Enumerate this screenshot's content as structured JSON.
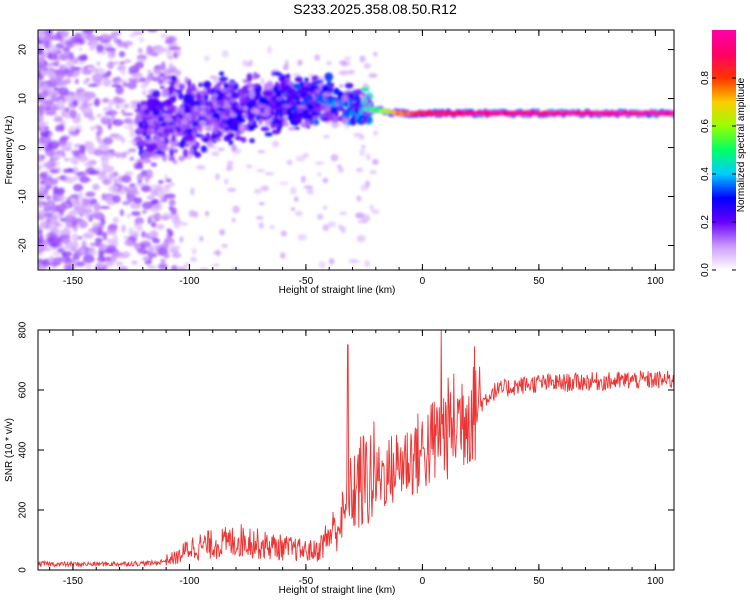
{
  "title": "S233.2025.358.08.50.R12",
  "chart_data": [
    {
      "type": "heatmap",
      "xlabel": "Height of straight line (km)",
      "ylabel": "Frequency (Hz)",
      "xlim": [
        -165,
        108
      ],
      "ylim": [
        -25,
        24
      ],
      "xticks": [
        -150,
        -100,
        -50,
        0,
        50,
        100
      ],
      "yticks": [
        -20,
        -10,
        0,
        10,
        20
      ],
      "colorbar": {
        "label": "Normalized spectral amplitude",
        "range": [
          0.0,
          1.0
        ],
        "ticks": [
          "0.0",
          "0.2",
          "0.4",
          "0.6",
          "0.8"
        ],
        "colors": [
          "#ffffff",
          "#cc99ff",
          "#6600ff",
          "#0000ff",
          "#00ccff",
          "#00ff66",
          "#99ff00",
          "#ffcc00",
          "#ff3300",
          "#ff0066",
          "#ff00aa"
        ]
      },
      "signal_track": [
        {
          "x": -120,
          "freq": 4,
          "amp": 0.18
        },
        {
          "x": -100,
          "freq": 6,
          "amp": 0.2
        },
        {
          "x": -80,
          "freq": 8,
          "amp": 0.22
        },
        {
          "x": -60,
          "freq": 9,
          "amp": 0.25
        },
        {
          "x": -40,
          "freq": 9.5,
          "amp": 0.3
        },
        {
          "x": -25,
          "freq": 8,
          "amp": 0.4
        },
        {
          "x": -10,
          "freq": 7,
          "amp": 0.75
        },
        {
          "x": 0,
          "freq": 7,
          "amp": 0.85
        },
        {
          "x": 25,
          "freq": 7,
          "amp": 0.95
        },
        {
          "x": 50,
          "freq": 7,
          "amp": 0.97
        },
        {
          "x": 75,
          "freq": 7,
          "amp": 0.97
        },
        {
          "x": 105,
          "freq": 7,
          "amp": 0.97
        }
      ]
    },
    {
      "type": "line",
      "xlabel": "Height of straight line (km)",
      "ylabel": "SNR (10 * v/v)",
      "xlim": [
        -165,
        108
      ],
      "ylim": [
        0,
        800
      ],
      "xticks": [
        -150,
        -100,
        -50,
        0,
        50,
        100
      ],
      "yticks": [
        0,
        200,
        400,
        600,
        800
      ],
      "line_color": "#ee3333",
      "series": [
        {
          "x": [
            -165,
            -150,
            -130,
            -115,
            -105,
            -100,
            -90,
            -80,
            -75,
            -70,
            -60,
            -50,
            -45,
            -40,
            -35,
            -32,
            -30,
            -25,
            -20,
            -15,
            -10,
            -5,
            0,
            5,
            9,
            15,
            20,
            25,
            30,
            40,
            50,
            60,
            70,
            80,
            90,
            100,
            108
          ],
          "values": [
            20,
            18,
            20,
            22,
            40,
            70,
            80,
            90,
            95,
            80,
            70,
            60,
            60,
            110,
            150,
            190,
            250,
            280,
            300,
            310,
            340,
            360,
            380,
            410,
            440,
            480,
            520,
            550,
            590,
            610,
            620,
            620,
            625,
            625,
            630,
            630,
            630
          ]
        }
      ],
      "spikes": [
        {
          "x": -32,
          "y": 750
        },
        {
          "x": 8,
          "y": 800
        }
      ]
    }
  ]
}
